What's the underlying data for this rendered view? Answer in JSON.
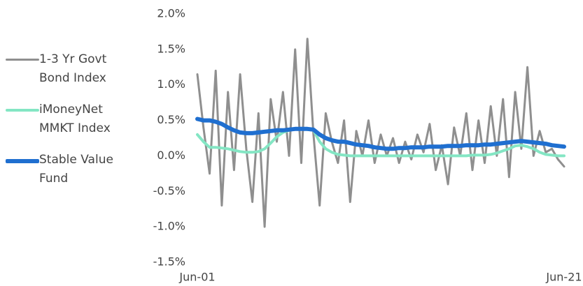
{
  "chart_data": {
    "type": "line",
    "x": [
      0,
      4,
      8,
      12,
      16,
      20,
      24,
      28,
      32,
      36,
      40,
      44,
      48,
      52,
      56,
      60,
      64,
      68,
      72,
      76,
      80,
      84,
      88,
      92,
      96,
      100,
      104,
      108,
      112,
      116,
      120,
      124,
      128,
      132,
      136,
      140,
      144,
      148,
      152,
      156,
      160,
      164,
      168,
      172,
      176,
      180,
      184,
      188,
      192,
      196,
      200,
      204,
      208,
      212,
      216,
      220,
      224,
      228,
      232,
      236,
      240
    ],
    "xlim": [
      0,
      240
    ],
    "xticks": [
      {
        "value": 0,
        "label": "Jun-01"
      },
      {
        "value": 240,
        "label": "Jun-21"
      }
    ],
    "ylim": [
      -1.5,
      2.0
    ],
    "yticks": [
      {
        "value": -1.5,
        "label": "-1.5%"
      },
      {
        "value": -1,
        "label": "-1.0%"
      },
      {
        "value": -0.5,
        "label": "-0.5%"
      },
      {
        "value": 0,
        "label": "0.0%"
      },
      {
        "value": 0.5,
        "label": "0.5%"
      },
      {
        "value": 1,
        "label": "1.0%"
      },
      {
        "value": 1.5,
        "label": "1.5%"
      },
      {
        "value": 2,
        "label": "2.0%"
      }
    ],
    "grid": false,
    "legend": "left",
    "series": [
      {
        "name": "1-3 Yr Govt Bond Index",
        "color": "#8f8f8f",
        "width": 3,
        "values": [
          1.15,
          0.4,
          -0.25,
          1.2,
          -0.7,
          0.9,
          -0.2,
          1.15,
          0.1,
          -0.65,
          0.6,
          -1.0,
          0.8,
          0.2,
          0.9,
          0.0,
          1.5,
          -0.1,
          1.65,
          0.3,
          -0.7,
          0.6,
          0.2,
          -0.1,
          0.5,
          -0.65,
          0.35,
          0.0,
          0.5,
          -0.1,
          0.3,
          0.0,
          0.25,
          -0.1,
          0.2,
          -0.05,
          0.3,
          0.05,
          0.45,
          -0.2,
          0.15,
          -0.4,
          0.4,
          0.0,
          0.6,
          -0.2,
          0.5,
          -0.1,
          0.7,
          0.0,
          0.8,
          -0.3,
          0.9,
          0.1,
          1.25,
          0.0,
          0.35,
          0.05,
          0.1,
          -0.05,
          -0.15
        ]
      },
      {
        "name": "iMoneyNet MMKT Index",
        "color": "#84e6c4",
        "width": 4,
        "values": [
          0.3,
          0.2,
          0.12,
          0.12,
          0.11,
          0.1,
          0.08,
          0.06,
          0.05,
          0.05,
          0.06,
          0.1,
          0.18,
          0.27,
          0.33,
          0.36,
          0.38,
          0.38,
          0.37,
          0.36,
          0.2,
          0.1,
          0.05,
          0.02,
          0.01,
          0.0,
          0.0,
          0.0,
          0.0,
          0.0,
          0.0,
          0.0,
          0.0,
          0.0,
          0.0,
          0.0,
          0.0,
          0.0,
          0.0,
          0.0,
          0.0,
          0.0,
          0.0,
          0.0,
          0.0,
          0.01,
          0.01,
          0.01,
          0.02,
          0.04,
          0.07,
          0.1,
          0.14,
          0.15,
          0.13,
          0.1,
          0.05,
          0.02,
          0.01,
          0.0,
          0.0
        ]
      },
      {
        "name": "Stable Value Fund",
        "color": "#1f6fd0",
        "width": 6,
        "values": [
          0.52,
          0.5,
          0.5,
          0.48,
          0.45,
          0.4,
          0.36,
          0.33,
          0.32,
          0.32,
          0.33,
          0.34,
          0.35,
          0.36,
          0.36,
          0.37,
          0.38,
          0.38,
          0.38,
          0.37,
          0.3,
          0.25,
          0.22,
          0.2,
          0.2,
          0.18,
          0.16,
          0.15,
          0.14,
          0.12,
          0.11,
          0.1,
          0.1,
          0.11,
          0.11,
          0.12,
          0.12,
          0.12,
          0.13,
          0.13,
          0.13,
          0.14,
          0.14,
          0.14,
          0.15,
          0.15,
          0.15,
          0.16,
          0.16,
          0.17,
          0.18,
          0.19,
          0.2,
          0.21,
          0.2,
          0.19,
          0.18,
          0.17,
          0.15,
          0.14,
          0.13
        ]
      }
    ]
  }
}
